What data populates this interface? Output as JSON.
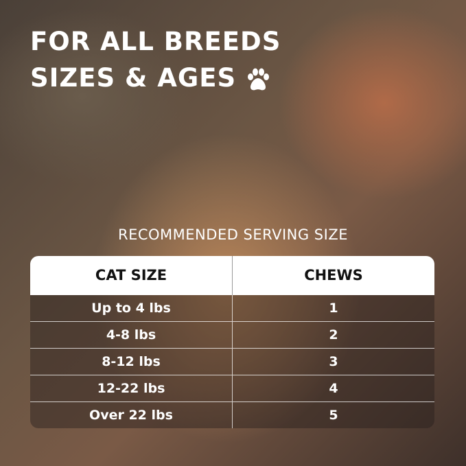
{
  "headline": {
    "line1": "FOR ALL BREEDS",
    "line2": "SIZES & AGES",
    "icon": "paw-icon"
  },
  "subtitle": "RECOMMENDED SERVING SIZE",
  "table": {
    "headers": [
      "CAT SIZE",
      "CHEWS"
    ],
    "rows": [
      [
        "Up to 4 lbs",
        "1"
      ],
      [
        "4-8 lbs",
        "2"
      ],
      [
        "8-12 lbs",
        "3"
      ],
      [
        "12-22 lbs",
        "4"
      ],
      [
        "Over 22 lbs",
        "5"
      ]
    ]
  }
}
